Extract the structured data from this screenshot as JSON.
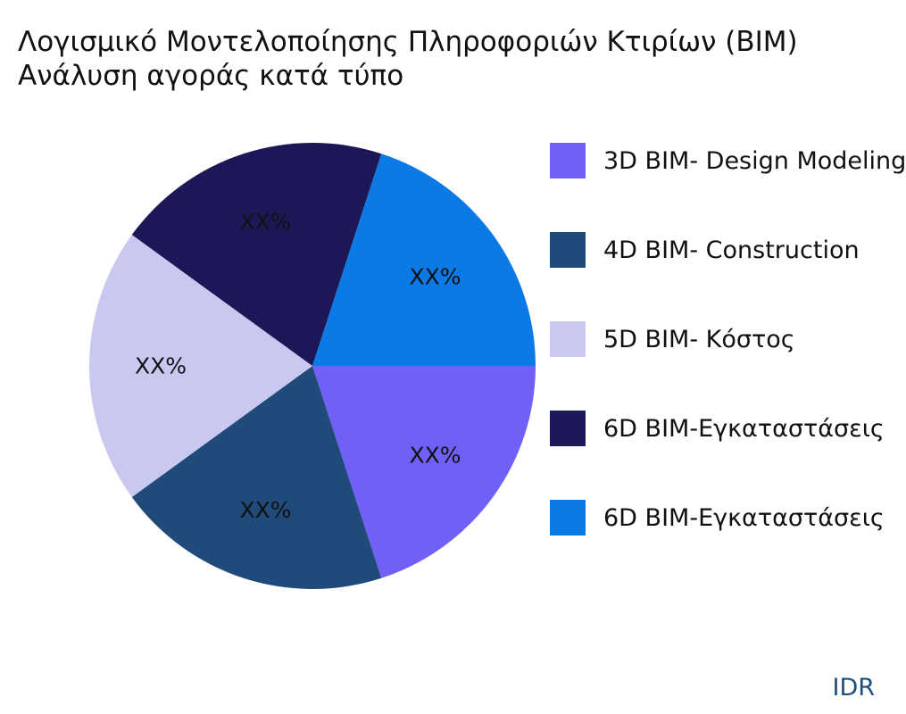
{
  "chart_data": {
    "type": "pie",
    "title": "Λογισμικό Μοντελοποίησης Πληροφοριών Κτιρίων (BIM)",
    "subtitle": "Ανάλυση αγοράς κατά τύπο",
    "slices": [
      {
        "name": "3D BIM- Design Modeling",
        "value": 20,
        "label": "XX%",
        "color": "#7060f5"
      },
      {
        "name": "4D BIM- Construction",
        "value": 20,
        "label": "XX%",
        "color": "#1f4a7a"
      },
      {
        "name": "5D BIM- Κόστος",
        "value": 20,
        "label": "XX%",
        "color": "#c9c8f0"
      },
      {
        "name": "6D BIM-Εγκαταστάσεις",
        "value": 20,
        "label": "XX%",
        "color": "#1c1756"
      },
      {
        "name": "6D BIM-Εγκαταστάσεις",
        "value": 20,
        "label": "XX%",
        "color": "#0b79e6"
      }
    ],
    "legend_position": "right"
  },
  "watermark": "IDR"
}
